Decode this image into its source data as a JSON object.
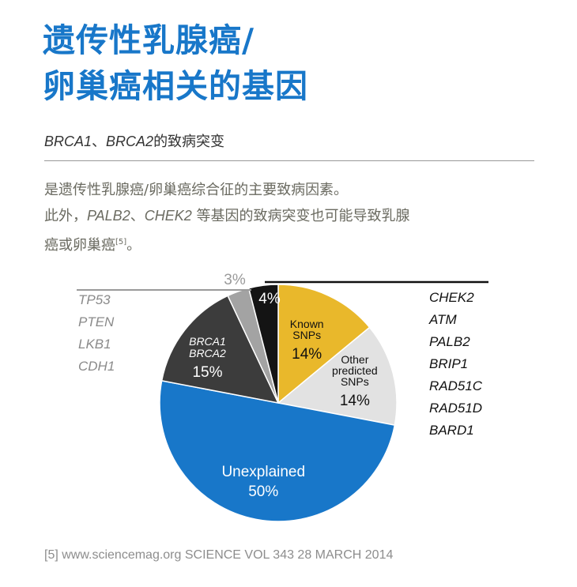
{
  "header": {
    "title_line1": "遗传性乳腺癌/",
    "title_line2": "卵巢癌相关的基因",
    "subtitle_gene1": "BRCA1",
    "subtitle_sep": "、",
    "subtitle_gene2": "BRCA2",
    "subtitle_rest": "的致病突变"
  },
  "description": {
    "line1": "是遗传性乳腺癌/卵巢癌综合征的主要致病因素。",
    "line2_a": "此外，",
    "line2_gene1": "PALB2",
    "line2_sep": "、",
    "line2_gene2": "CHEK2",
    "line2_b": " 等基因的致病突变也可能导致乳腺",
    "line3": "癌或卵巢癌",
    "line3_ref": "[5]",
    "line3_end": "。"
  },
  "chart_data": {
    "type": "pie",
    "slices": [
      {
        "key": "known",
        "label_lines": [
          "Known",
          "SNPs"
        ],
        "pct": "14%",
        "value": 14,
        "color": "#e9b82b"
      },
      {
        "key": "other",
        "label_lines": [
          "Other",
          "predicted",
          "SNPs"
        ],
        "pct": "14%",
        "value": 14,
        "color": "#e2e2e2"
      },
      {
        "key": "unexplained",
        "label_lines": [
          "Unexplained"
        ],
        "pct": "50%",
        "value": 50,
        "color": "#1877c9"
      },
      {
        "key": "brca",
        "label_lines": [
          "BRCA1",
          "BRCA2"
        ],
        "pct": "15%",
        "value": 15,
        "color": "#3c3c3c"
      },
      {
        "key": "tp53",
        "label_lines": [],
        "pct": "3%",
        "value": 3,
        "color": "#a3a3a3"
      },
      {
        "key": "chek2",
        "label_lines": [],
        "pct": "4%",
        "value": 4,
        "color": "#141414"
      }
    ],
    "left_genes": [
      "TP53",
      "PTEN",
      "LKB1",
      "CDH1"
    ],
    "right_genes": [
      "CHEK2",
      "ATM",
      "PALB2",
      "BRIP1",
      "RAD51C",
      "RAD51D",
      "BARD1"
    ]
  },
  "footnote": "[5] www.sciencemag.org SCIENCE VOL 343 28 MARCH 2014"
}
